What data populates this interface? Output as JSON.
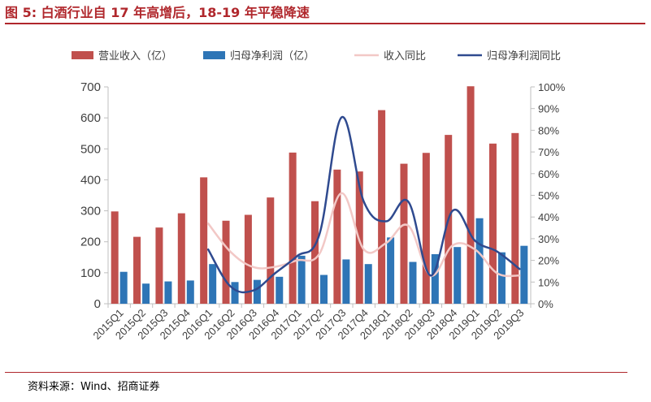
{
  "title": "图 5:  白酒行业自 17 年高增后，18-19 年平稳降速",
  "source": "资料来源：Wind、招商证券",
  "chart_data": {
    "type": "bar",
    "categories": [
      "2015Q1",
      "2015Q2",
      "2015Q3",
      "2015Q4",
      "2016Q1",
      "2016Q2",
      "2016Q3",
      "2016Q4",
      "2017Q1",
      "2017Q2",
      "2017Q3",
      "2017Q4",
      "2018Q1",
      "2018Q2",
      "2018Q3",
      "2018Q4",
      "2019Q1",
      "2019Q2",
      "2019Q3"
    ],
    "series": [
      {
        "name": "营业收入（亿）",
        "type": "bar",
        "axis": "left",
        "color": "#c0504d",
        "values": [
          298,
          216,
          246,
          292,
          408,
          268,
          287,
          343,
          488,
          331,
          433,
          427,
          625,
          452,
          487,
          545,
          702,
          517,
          551
        ]
      },
      {
        "name": "归母净利润（亿）",
        "type": "bar",
        "axis": "left",
        "color": "#2e75b6",
        "values": [
          103,
          65,
          72,
          75,
          128,
          70,
          77,
          87,
          155,
          93,
          143,
          128,
          214,
          135,
          160,
          183,
          276,
          166,
          187
        ]
      },
      {
        "name": "收入同比",
        "type": "line",
        "axis": "right",
        "color": "#f2c8c6",
        "values": [
          null,
          null,
          null,
          null,
          0.37,
          0.24,
          0.17,
          0.17,
          0.2,
          0.23,
          0.51,
          0.25,
          0.28,
          0.36,
          0.13,
          0.27,
          0.25,
          0.14,
          0.13
        ]
      },
      {
        "name": "归母净利润同比",
        "type": "line",
        "axis": "right",
        "color": "#2f4a8f",
        "values": [
          null,
          null,
          null,
          null,
          0.25,
          0.08,
          0.06,
          0.14,
          0.22,
          0.32,
          0.86,
          0.47,
          0.38,
          0.47,
          0.13,
          0.43,
          0.29,
          0.24,
          0.16
        ]
      }
    ],
    "ylim": [
      0,
      700
    ],
    "yticks": [
      0,
      100,
      200,
      300,
      400,
      500,
      600,
      700
    ],
    "y2lim": [
      0,
      1.0
    ],
    "y2ticks": [
      "0%",
      "10%",
      "20%",
      "30%",
      "40%",
      "50%",
      "60%",
      "70%",
      "80%",
      "90%",
      "100%"
    ],
    "legend_position": "top",
    "grid": false
  }
}
